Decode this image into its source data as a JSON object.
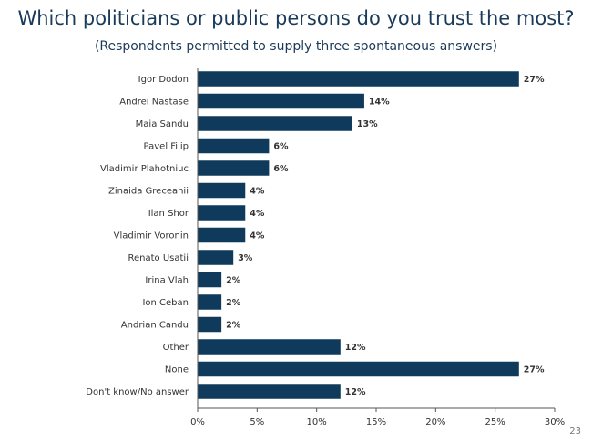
{
  "page": {
    "title": "Which politicians or public persons do you trust the most?",
    "subtitle": "(Respondents permitted to supply three spontaneous answers)",
    "page_number": "23"
  },
  "colors": {
    "bar": "#0f3a5c",
    "axis": "#555555",
    "label": "#333333"
  },
  "chart_data": {
    "type": "bar",
    "orientation": "horizontal",
    "title": "Which politicians or public persons do you trust the most?",
    "subtitle": "(Respondents permitted to supply three spontaneous answers)",
    "categories": [
      "Igor Dodon",
      "Andrei Nastase",
      "Maia Sandu",
      "Pavel Filip",
      "Vladimir Plahotniuc",
      "Zinaida Greceanii",
      "Ilan Shor",
      "Vladimir Voronin",
      "Renato Usatii",
      "Irina Vlah",
      "Ion Ceban",
      "Andrian Candu",
      "Other",
      "None",
      "Don't know/No answer"
    ],
    "values": [
      27,
      14,
      13,
      6,
      6,
      4,
      4,
      4,
      3,
      2,
      2,
      2,
      12,
      27,
      12
    ],
    "value_labels": [
      "27%",
      "14%",
      "13%",
      "6%",
      "6%",
      "4%",
      "4%",
      "4%",
      "3%",
      "2%",
      "2%",
      "2%",
      "12%",
      "27%",
      "12%"
    ],
    "xlim": [
      0,
      30
    ],
    "x_ticks": [
      0,
      5,
      10,
      15,
      20,
      25,
      30
    ],
    "x_tick_labels": [
      "0%",
      "5%",
      "10%",
      "15%",
      "20%",
      "25%",
      "30%"
    ],
    "grid": false,
    "legend": "none"
  }
}
